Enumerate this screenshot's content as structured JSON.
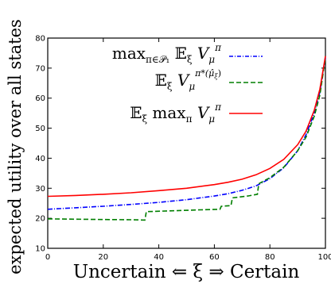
{
  "chart_data": {
    "type": "line",
    "xlabel": "Uncertain ⇐ ξ ⇒ Certain",
    "ylabel": "expected utility over all states",
    "xlim": [
      0,
      100
    ],
    "ylim": [
      10,
      80
    ],
    "xticks": [
      0,
      20,
      40,
      60,
      80,
      100
    ],
    "yticks": [
      10,
      20,
      30,
      40,
      50,
      60,
      70,
      80
    ],
    "grid": false,
    "legend_position": "top-right",
    "series": [
      {
        "name": "max_{π∈P1} E_ξ V_μ^π",
        "color": "#0000ff",
        "style": "dash-dot",
        "x": [
          0,
          10,
          20,
          30,
          40,
          50,
          60,
          65,
          70,
          75,
          80,
          85,
          90,
          93,
          96,
          98,
          100
        ],
        "y": [
          23.0,
          23.5,
          24.0,
          24.6,
          25.3,
          26.2,
          27.4,
          28.2,
          29.3,
          30.8,
          33.2,
          36.8,
          42.5,
          47.8,
          55.0,
          62.0,
          73.5
        ]
      },
      {
        "name": "E_ξ V_μ^{π*(μ̂_ξ)}",
        "color": "#007f00",
        "style": "dashed",
        "x": [
          0,
          10,
          20,
          30,
          35,
          35.5,
          45,
          55,
          62,
          62.5,
          66,
          66.5,
          72,
          75.5,
          76,
          80,
          85,
          90,
          93,
          96,
          98,
          100
        ],
        "y": [
          19.8,
          19.7,
          19.6,
          19.5,
          19.4,
          22.2,
          22.5,
          22.8,
          23.0,
          24.0,
          24.2,
          26.8,
          27.4,
          28.0,
          31.5,
          33.5,
          37.0,
          42.5,
          47.0,
          54.0,
          61.0,
          73.5
        ]
      },
      {
        "name": "E_ξ max_π V_μ^π",
        "color": "#ff0000",
        "style": "solid",
        "x": [
          0,
          10,
          20,
          30,
          40,
          50,
          60,
          65,
          70,
          75,
          80,
          85,
          90,
          93,
          96,
          98,
          100
        ],
        "y": [
          27.3,
          27.6,
          28.0,
          28.5,
          29.2,
          30.0,
          31.2,
          32.0,
          33.0,
          34.5,
          36.6,
          39.6,
          44.5,
          49.0,
          56.0,
          63.0,
          74.0
        ]
      }
    ]
  }
}
